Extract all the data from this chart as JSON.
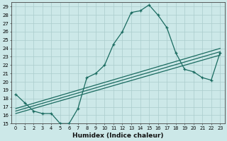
{
  "xlabel": "Humidex (Indice chaleur)",
  "xlim": [
    -0.5,
    23.5
  ],
  "ylim": [
    15,
    29.5
  ],
  "xticks": [
    0,
    1,
    2,
    3,
    4,
    5,
    6,
    7,
    8,
    9,
    10,
    11,
    12,
    13,
    14,
    15,
    16,
    17,
    18,
    19,
    20,
    21,
    22,
    23
  ],
  "yticks": [
    15,
    16,
    17,
    18,
    19,
    20,
    21,
    22,
    23,
    24,
    25,
    26,
    27,
    28,
    29
  ],
  "bg_color": "#cce8e8",
  "line_color": "#1a6b60",
  "grid_color": "#aacccc",
  "curve_x": [
    0,
    1,
    2,
    3,
    4,
    5,
    6,
    7,
    8,
    9,
    10,
    11,
    12,
    13,
    14,
    15,
    16,
    17,
    18,
    19,
    20,
    21,
    22,
    23
  ],
  "curve_y": [
    18.5,
    17.5,
    16.5,
    16.2,
    16.2,
    15.0,
    15.0,
    16.8,
    20.5,
    21.0,
    22.0,
    24.5,
    26.0,
    28.3,
    28.5,
    29.2,
    28.0,
    26.5,
    23.5,
    21.5,
    21.2,
    20.5,
    20.2,
    23.5
  ],
  "line1_x": [
    0,
    23
  ],
  "line1_y": [
    16.2,
    23.2
  ],
  "line2_x": [
    0,
    23
  ],
  "line2_y": [
    16.5,
    23.6
  ],
  "line3_x": [
    0,
    23
  ],
  "line3_y": [
    16.8,
    24.0
  ]
}
